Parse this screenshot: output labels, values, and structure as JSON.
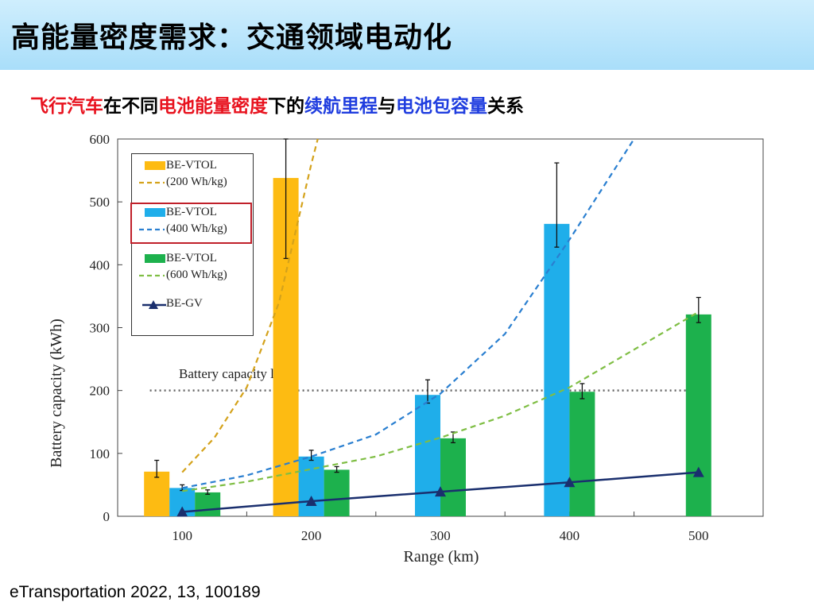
{
  "header": {
    "title": "高能量密度需求：交通领域电动化"
  },
  "subtitle": {
    "parts": [
      {
        "text": "飞行汽车",
        "color": "#e8121e"
      },
      {
        "text": "在不同",
        "color": "#000000"
      },
      {
        "text": "电池能量密度",
        "color": "#e8121e"
      },
      {
        "text": "下的",
        "color": "#000000"
      },
      {
        "text": "续航里程",
        "color": "#1f3ddf"
      },
      {
        "text": "与",
        "color": "#000000"
      },
      {
        "text": "电池包容量",
        "color": "#1f3ddf"
      },
      {
        "text": "关系",
        "color": "#000000"
      }
    ]
  },
  "citation": "eTransportation 2022, 13, 100189",
  "colors": {
    "orange": "#fdbb12",
    "blue": "#1faeea",
    "green": "#1db14d",
    "navy": "#1a2f6e",
    "orange_dash": "#d4a21b",
    "blue_dash": "#2a7fd0",
    "green_dash": "#7fbe44",
    "highlight": "#c0202a"
  },
  "chart_data": {
    "type": "bar",
    "xlabel": "Range (km)",
    "ylabel": "Battery capacity (kWh)",
    "categories": [
      "100",
      "200",
      "300",
      "400",
      "500"
    ],
    "ylim": [
      0,
      600
    ],
    "yticks": [
      0,
      100,
      200,
      300,
      400,
      500,
      600
    ],
    "series": [
      {
        "name": "BE-VTOL",
        "legend_sub": "(200 Wh/kg)",
        "kind": "bar",
        "color": "orange",
        "values": [
          71,
          538,
          null,
          null,
          null
        ],
        "err_low": [
          62,
          410,
          null,
          null,
          null
        ],
        "err_high": [
          89,
          600,
          null,
          null,
          null
        ]
      },
      {
        "name": "BE-VTOL",
        "legend_sub": "(400 Wh/kg)",
        "kind": "bar",
        "color": "blue",
        "values": [
          45,
          95,
          193,
          465,
          null
        ],
        "err_low": [
          41,
          89,
          180,
          428,
          null
        ],
        "err_high": [
          50,
          105,
          217,
          562,
          null
        ]
      },
      {
        "name": "BE-VTOL",
        "legend_sub": "(600 Wh/kg)",
        "kind": "bar",
        "color": "green",
        "values": [
          38,
          74,
          124,
          198,
          321
        ],
        "err_low": [
          35,
          70,
          117,
          187,
          308
        ],
        "err_high": [
          42,
          79,
          134,
          211,
          348
        ]
      },
      {
        "name": "BE-GV",
        "kind": "line",
        "color": "navy",
        "values": [
          7,
          24,
          39,
          54,
          70
        ]
      }
    ],
    "trend_lines": [
      {
        "color": "orange_dash",
        "x": [
          100,
          125,
          150,
          175,
          200,
          205
        ],
        "y": [
          70,
          125,
          205,
          340,
          560,
          600
        ]
      },
      {
        "color": "blue_dash",
        "x": [
          100,
          150,
          200,
          250,
          300,
          350,
          400,
          450
        ],
        "y": [
          45,
          65,
          95,
          130,
          195,
          290,
          440,
          600
        ]
      },
      {
        "color": "green_dash",
        "x": [
          100,
          150,
          200,
          250,
          300,
          350,
          400,
          450,
          500
        ],
        "y": [
          40,
          55,
          75,
          95,
          125,
          160,
          205,
          265,
          325
        ]
      }
    ],
    "reference_line": {
      "y": 200,
      "label": "Battery capacity limit"
    }
  }
}
